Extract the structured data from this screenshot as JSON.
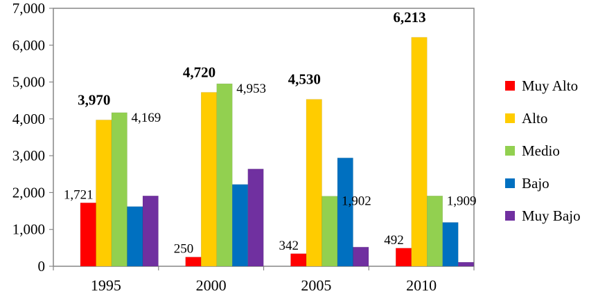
{
  "chart_data": {
    "type": "bar",
    "categories": [
      "1995",
      "2000",
      "2005",
      "2010"
    ],
    "series": [
      {
        "name": "Muy Alto",
        "color": "#ff0000",
        "values": [
          1721,
          250,
          342,
          492
        ]
      },
      {
        "name": "Alto",
        "color": "#ffcc00",
        "values": [
          3970,
          4720,
          4530,
          6213
        ]
      },
      {
        "name": "Medio",
        "color": "#92d050",
        "values": [
          4169,
          4953,
          1902,
          1909
        ]
      },
      {
        "name": "Bajo",
        "color": "#0070c0",
        "values": [
          1620,
          2220,
          2940,
          1190
        ]
      },
      {
        "name": "Muy Bajo",
        "color": "#7030a0",
        "values": [
          1910,
          2640,
          520,
          110
        ]
      }
    ],
    "ylim": [
      0,
      7000
    ],
    "yticks": [
      0,
      1000,
      2000,
      3000,
      4000,
      5000,
      6000,
      7000
    ],
    "ytick_labels": [
      "0",
      "1,000",
      "2,000",
      "3,000",
      "4,000",
      "5,000",
      "6,000",
      "7,000"
    ],
    "data_labels": [
      {
        "series": 0,
        "category": 0,
        "text": "1,721",
        "bold": false
      },
      {
        "series": 1,
        "category": 0,
        "text": "3,970",
        "bold": true
      },
      {
        "series": 2,
        "category": 0,
        "text": "4,169",
        "bold": false
      },
      {
        "series": 0,
        "category": 1,
        "text": "250",
        "bold": false
      },
      {
        "series": 1,
        "category": 1,
        "text": "4,720",
        "bold": true
      },
      {
        "series": 2,
        "category": 1,
        "text": "4,953",
        "bold": false
      },
      {
        "series": 0,
        "category": 2,
        "text": "342",
        "bold": false
      },
      {
        "series": 1,
        "category": 2,
        "text": "4,530",
        "bold": true
      },
      {
        "series": 2,
        "category": 2,
        "text": "1,902",
        "bold": false
      },
      {
        "series": 0,
        "category": 3,
        "text": "492",
        "bold": false
      },
      {
        "series": 1,
        "category": 3,
        "text": "6,213",
        "bold": true
      },
      {
        "series": 2,
        "category": 3,
        "text": "1,909",
        "bold": false
      }
    ],
    "grid": false,
    "legend_position": "right",
    "title": "",
    "xlabel": "",
    "ylabel": ""
  }
}
